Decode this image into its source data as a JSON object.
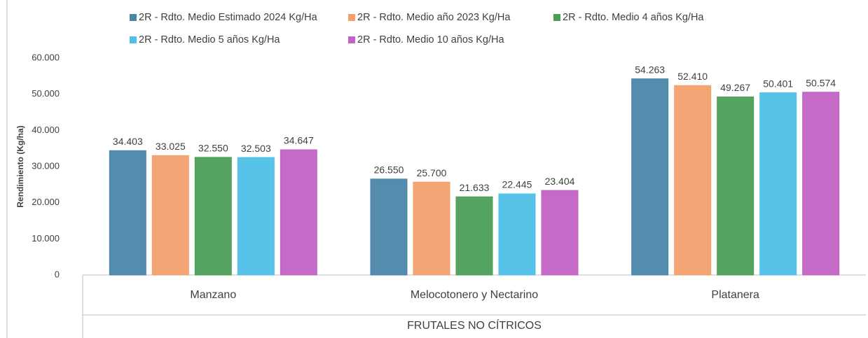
{
  "chart_data": {
    "type": "bar",
    "y_label": "Rendimiento (Kg/ha)",
    "x_label": "FRUTALES NO CÍTRICOS",
    "categories": [
      "Manzano",
      "Melocotonero y Nectarino",
      "Platanera"
    ],
    "series": [
      {
        "name": "2R - Rdto. Medio Estimado 2024 Kg/Ha",
        "color": "#4a86a8",
        "values": [
          34403,
          26550,
          54263
        ],
        "value_labels": [
          "34.403",
          "26.550",
          "54.263"
        ]
      },
      {
        "name": "2R - Rdto. Medio año 2023 Kg/Ha",
        "color": "#f2a06e",
        "values": [
          33025,
          25700,
          52410
        ],
        "value_labels": [
          "33.025",
          "25.700",
          "52.410"
        ]
      },
      {
        "name": "2R - Rdto. Medio 4 años Kg/Ha",
        "color": "#4c9e58",
        "values": [
          32550,
          21633,
          49267
        ],
        "value_labels": [
          "32.550",
          "21.633",
          "49.267"
        ]
      },
      {
        "name": "2R - Rdto. Medio 5 años Kg/Ha",
        "color": "#4fc0e8",
        "values": [
          32503,
          22445,
          50401
        ],
        "value_labels": [
          "32.503",
          "22.445",
          "50.401"
        ]
      },
      {
        "name": "2R - Rdto. Medio 10 años Kg/Ha",
        "color": "#c262c4",
        "values": [
          34647,
          23404,
          50574
        ],
        "value_labels": [
          "34.647",
          "23.404",
          "50.574"
        ]
      }
    ],
    "ylim": [
      0,
      60000
    ],
    "yticks": [
      0,
      {
        "value": 10000,
        "label": "10.000"
      },
      {
        "value": 20000,
        "label": "20.000"
      },
      {
        "value": 30000,
        "label": "30.000"
      },
      {
        "value": 40000,
        "label": "40.000"
      },
      {
        "value": 50000,
        "label": "50.000"
      },
      {
        "value": 60000,
        "label": "60.000"
      }
    ],
    "grid": false,
    "legend": "top"
  }
}
